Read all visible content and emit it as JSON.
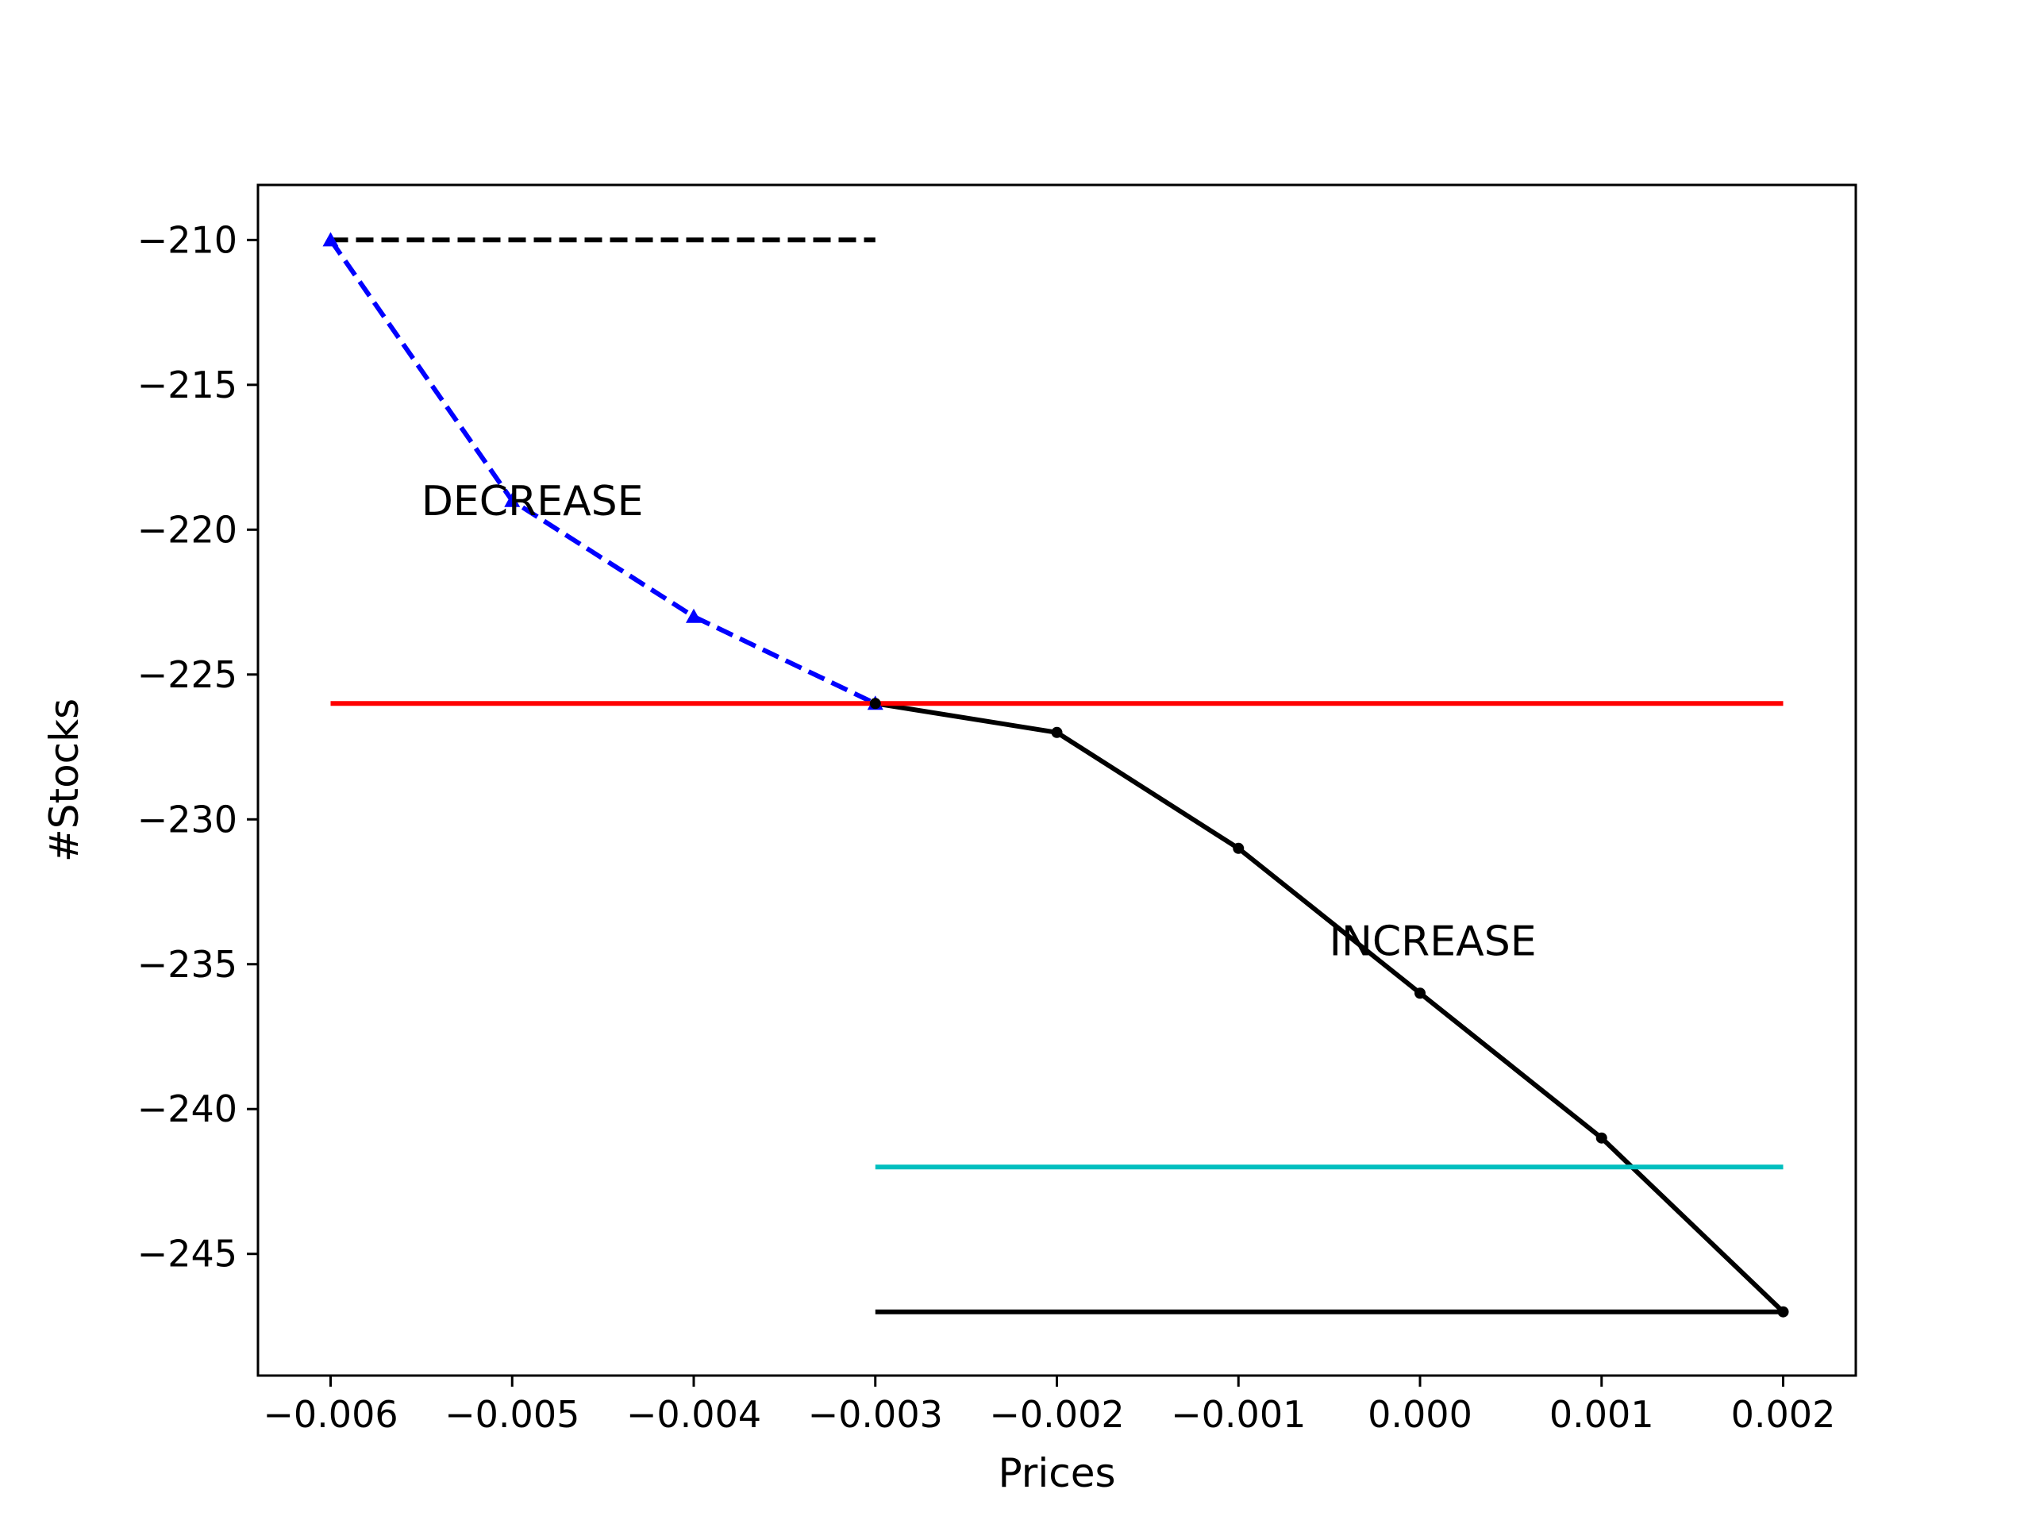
{
  "chart_data": {
    "type": "line",
    "title": "",
    "xlabel": "Prices",
    "ylabel": "#Stocks",
    "xlim": [
      -0.0064,
      0.0024
    ],
    "ylim": [
      -249.2,
      -208.1
    ],
    "xticks": [
      -0.006,
      -0.005,
      -0.004,
      -0.003,
      -0.002,
      -0.001,
      0.0,
      0.001,
      0.002
    ],
    "xtick_labels": [
      "−0.006",
      "−0.005",
      "−0.004",
      "−0.003",
      "−0.002",
      "−0.001",
      "0.000",
      "0.001",
      "0.002"
    ],
    "yticks": [
      -210,
      -215,
      -220,
      -225,
      -230,
      -235,
      -240,
      -245
    ],
    "ytick_labels": [
      "−210",
      "−215",
      "−220",
      "−225",
      "−230",
      "−235",
      "−240",
      "−245"
    ],
    "grid": false,
    "series": [
      {
        "style": "dashed",
        "color": "#0000ff",
        "marker": "triangle",
        "x": [
          -0.006,
          -0.005,
          -0.004,
          -0.003
        ],
        "y": [
          -210,
          -219,
          -223,
          -226
        ]
      },
      {
        "style": "solid",
        "color": "#000000",
        "marker": "dot",
        "x": [
          -0.003,
          -0.002,
          -0.001,
          0.0,
          0.001,
          0.002
        ],
        "y": [
          -226,
          -227,
          -231,
          -236,
          -241,
          -247
        ]
      },
      {
        "style": "dashed",
        "color": "#000000",
        "marker": "none",
        "x": [
          -0.006,
          -0.003
        ],
        "y": [
          -210,
          -210
        ]
      },
      {
        "style": "solid",
        "color": "#ff0000",
        "marker": "none",
        "x": [
          -0.006,
          0.002
        ],
        "y": [
          -226,
          -226
        ]
      },
      {
        "style": "solid",
        "color": "#00bfbf",
        "marker": "none",
        "x": [
          -0.003,
          0.002
        ],
        "y": [
          -242,
          -242
        ]
      },
      {
        "style": "solid",
        "color": "#000000",
        "marker": "none",
        "x": [
          -0.003,
          0.002
        ],
        "y": [
          -247,
          -247
        ]
      }
    ],
    "annotations": [
      {
        "text": "DECREASE",
        "x": -0.0055,
        "y": -219
      },
      {
        "text": "INCREASE",
        "x": -0.0005,
        "y": -234.2
      }
    ]
  }
}
